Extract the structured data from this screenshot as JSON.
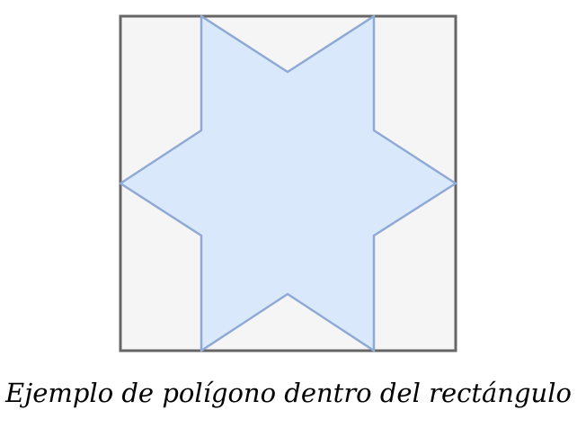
{
  "caption": "Ejemplo de polígono dentro del rectángulo",
  "colors": {
    "rect_fill": "#f5f5f5",
    "rect_stroke": "#666666",
    "star_fill": "#dae8fc",
    "star_stroke": "#8fa9d6"
  }
}
